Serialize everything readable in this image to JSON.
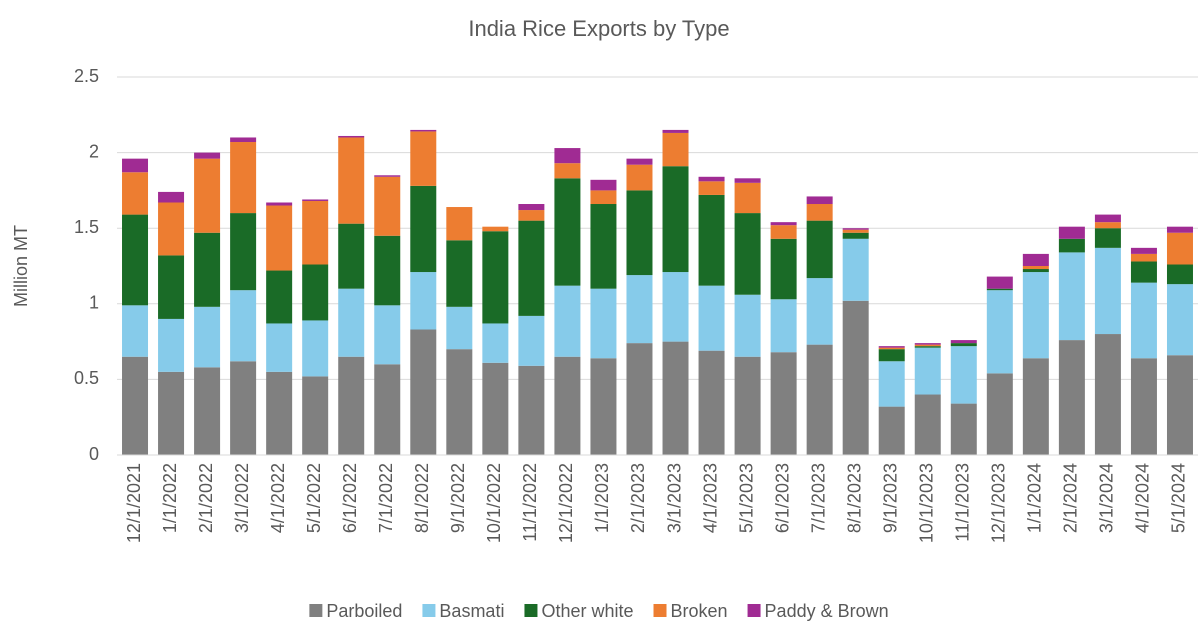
{
  "chart_data": {
    "type": "stacked_bar",
    "title": "India Rice Exports by Type",
    "y_label": "Million MT",
    "categories": [
      "12/1/2021",
      "1/1/2022",
      "2/1/2022",
      "3/1/2022",
      "4/1/2022",
      "5/1/2022",
      "6/1/2022",
      "7/1/2022",
      "8/1/2022",
      "9/1/2022",
      "10/1/2022",
      "11/1/2022",
      "12/1/2022",
      "1/1/2023",
      "2/1/2023",
      "3/1/2023",
      "4/1/2023",
      "5/1/2023",
      "6/1/2023",
      "7/1/2023",
      "8/1/2023",
      "9/1/2023",
      "10/1/2023",
      "11/1/2023",
      "12/1/2023",
      "1/1/2024",
      "2/1/2024",
      "3/1/2024",
      "4/1/2024",
      "5/1/2024"
    ],
    "series": [
      {
        "name": "Parboiled",
        "color": "#808080",
        "values": [
          0.65,
          0.55,
          0.58,
          0.62,
          0.55,
          0.52,
          0.65,
          0.6,
          0.83,
          0.7,
          0.61,
          0.59,
          0.65,
          0.64,
          0.74,
          0.75,
          0.69,
          0.65,
          0.68,
          0.73,
          1.02,
          0.32,
          0.4,
          0.34,
          0.54,
          0.64,
          0.76,
          0.8,
          0.64,
          0.66
        ]
      },
      {
        "name": "Basmati",
        "color": "#86cbea",
        "values": [
          0.34,
          0.35,
          0.4,
          0.47,
          0.32,
          0.37,
          0.45,
          0.39,
          0.38,
          0.28,
          0.26,
          0.33,
          0.47,
          0.46,
          0.45,
          0.46,
          0.43,
          0.41,
          0.35,
          0.44,
          0.41,
          0.3,
          0.31,
          0.38,
          0.55,
          0.57,
          0.58,
          0.57,
          0.5,
          0.47
        ]
      },
      {
        "name": "Other white",
        "color": "#1a6b27",
        "values": [
          0.6,
          0.42,
          0.49,
          0.51,
          0.35,
          0.37,
          0.43,
          0.46,
          0.57,
          0.44,
          0.61,
          0.63,
          0.71,
          0.56,
          0.56,
          0.7,
          0.6,
          0.54,
          0.4,
          0.38,
          0.04,
          0.08,
          0.01,
          0.02,
          0.01,
          0.02,
          0.09,
          0.13,
          0.14,
          0.13
        ]
      },
      {
        "name": "Broken",
        "color": "#ed7d31",
        "values": [
          0.28,
          0.35,
          0.49,
          0.47,
          0.43,
          0.42,
          0.57,
          0.39,
          0.36,
          0.22,
          0.03,
          0.07,
          0.1,
          0.09,
          0.17,
          0.22,
          0.09,
          0.2,
          0.09,
          0.11,
          0.02,
          0.01,
          0.01,
          0,
          0,
          0.02,
          0,
          0.04,
          0.05,
          0.21
        ]
      },
      {
        "name": "Paddy & Brown",
        "color": "#a02b93",
        "values": [
          0.09,
          0.07,
          0.04,
          0.03,
          0.02,
          0.01,
          0.01,
          0.01,
          0.01,
          0,
          0,
          0.04,
          0.1,
          0.07,
          0.04,
          0.02,
          0.03,
          0.03,
          0.02,
          0.05,
          0.01,
          0.01,
          0.01,
          0.02,
          0.08,
          0.08,
          0.08,
          0.05,
          0.04,
          0.04
        ]
      }
    ],
    "ylim": [
      0,
      2.5
    ],
    "yticks": [
      0,
      0.5,
      1,
      1.5,
      2,
      2.5
    ],
    "grid": true,
    "legend": "bottom"
  }
}
